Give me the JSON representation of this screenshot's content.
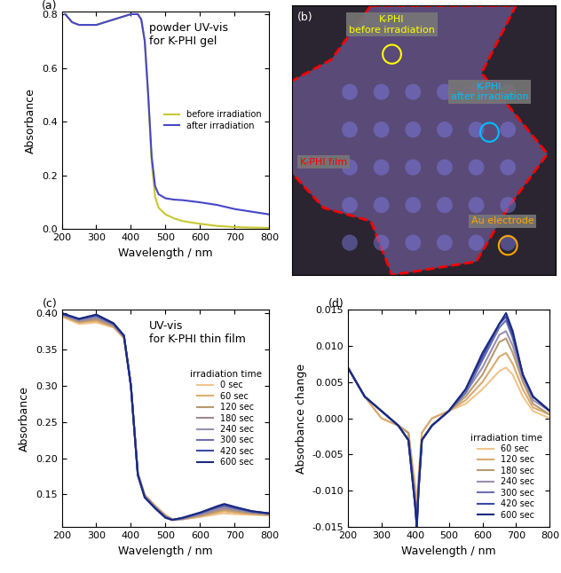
{
  "chart_data": [
    {
      "type": "line",
      "panel": "(a)",
      "annotation": "powder UV-vis\nfor K-PHI gel",
      "x_label": "Wavelength / nm",
      "y_label": "Absorbance",
      "xlim": [
        200,
        800
      ],
      "xticks": [
        200,
        300,
        400,
        500,
        600,
        700,
        800
      ],
      "ylim": [
        0,
        0.81
      ],
      "yticks": [
        {
          "value": 0,
          "label": "0.0"
        },
        0.2,
        0.4,
        0.6,
        0.8
      ],
      "legend": "center right",
      "x": [
        210,
        230,
        250,
        275,
        300,
        325,
        350,
        375,
        400,
        420,
        430,
        440,
        450,
        460,
        470,
        480,
        500,
        525,
        550,
        600,
        650,
        700,
        750,
        800
      ],
      "series": [
        {
          "name": "before irradiation",
          "color": "#c8c832",
          "values": [
            0.8,
            0.77,
            0.76,
            0.76,
            0.76,
            0.77,
            0.78,
            0.79,
            0.8,
            0.8,
            0.78,
            0.7,
            0.5,
            0.25,
            0.12,
            0.08,
            0.055,
            0.04,
            0.03,
            0.02,
            0.012,
            0.008,
            0.006,
            0.005
          ]
        },
        {
          "name": "after irradiation",
          "color": "#4646c8",
          "values": [
            0.8,
            0.77,
            0.76,
            0.76,
            0.76,
            0.77,
            0.78,
            0.79,
            0.8,
            0.8,
            0.78,
            0.7,
            0.5,
            0.27,
            0.16,
            0.13,
            0.115,
            0.11,
            0.108,
            0.1,
            0.09,
            0.075,
            0.065,
            0.055
          ]
        }
      ]
    },
    {
      "type": "image",
      "panel": "(b)",
      "tick_labels": false,
      "annotations": [
        "K-PHI\nbefore irradiation",
        "K-PHI\nafter irradiation",
        "K-PHI film",
        "Au electrode"
      ]
    },
    {
      "type": "line",
      "panel": "(c)",
      "annotation": "UV-vis\nfor K-PHI thin film",
      "x_label": "Wavelength / nm",
      "y_label": "Absorbance",
      "xlim": [
        200,
        800
      ],
      "xticks": [
        200,
        300,
        400,
        500,
        600,
        700,
        800
      ],
      "ylim": [
        0.105,
        0.405
      ],
      "yticks": [
        0.15,
        {
          "value": 0.2,
          "label": "0.20"
        },
        0.25,
        {
          "value": 0.3,
          "label": "0.30"
        },
        0.35,
        {
          "value": 0.4,
          "label": "0.40"
        }
      ],
      "legend": "center right",
      "legend_title": "irradiation time",
      "x": [
        200,
        250,
        300,
        350,
        380,
        400,
        420,
        440,
        470,
        500,
        520,
        550,
        600,
        650,
        670,
        700,
        750,
        800
      ],
      "series": [
        {
          "name": "0 sec",
          "color": "#f2c48a",
          "values": [
            0.395,
            0.385,
            0.387,
            0.38,
            0.365,
            0.3,
            0.18,
            0.15,
            0.135,
            0.122,
            0.116,
            0.116,
            0.119,
            0.123,
            0.124,
            0.123,
            0.122,
            0.121
          ]
        },
        {
          "name": "60 sec",
          "color": "#e0ae6e",
          "values": [
            0.396,
            0.387,
            0.389,
            0.381,
            0.366,
            0.3,
            0.179,
            0.149,
            0.134,
            0.121,
            0.116,
            0.116,
            0.12,
            0.125,
            0.127,
            0.125,
            0.123,
            0.122
          ]
        },
        {
          "name": "120 sec",
          "color": "#b89a70",
          "values": [
            0.397,
            0.388,
            0.391,
            0.382,
            0.367,
            0.3,
            0.179,
            0.148,
            0.133,
            0.12,
            0.115,
            0.116,
            0.121,
            0.127,
            0.129,
            0.127,
            0.124,
            0.122
          ]
        },
        {
          "name": "180 sec",
          "color": "#a08890",
          "values": [
            0.398,
            0.389,
            0.393,
            0.383,
            0.367,
            0.3,
            0.178,
            0.148,
            0.133,
            0.12,
            0.115,
            0.117,
            0.122,
            0.129,
            0.131,
            0.129,
            0.125,
            0.123
          ]
        },
        {
          "name": "240 sec",
          "color": "#9a90b0",
          "values": [
            0.398,
            0.39,
            0.395,
            0.384,
            0.368,
            0.3,
            0.178,
            0.147,
            0.132,
            0.119,
            0.115,
            0.117,
            0.123,
            0.131,
            0.133,
            0.13,
            0.126,
            0.123
          ]
        },
        {
          "name": "300 sec",
          "color": "#6a70b0",
          "values": [
            0.399,
            0.391,
            0.396,
            0.385,
            0.368,
            0.3,
            0.177,
            0.147,
            0.132,
            0.119,
            0.115,
            0.117,
            0.124,
            0.132,
            0.134,
            0.131,
            0.126,
            0.124
          ]
        },
        {
          "name": "420 sec",
          "color": "#3a4aa8",
          "values": [
            0.399,
            0.392,
            0.397,
            0.385,
            0.369,
            0.3,
            0.177,
            0.146,
            0.131,
            0.118,
            0.115,
            0.118,
            0.125,
            0.133,
            0.136,
            0.132,
            0.127,
            0.124
          ]
        },
        {
          "name": "600 sec",
          "color": "#1a2a80",
          "values": [
            0.4,
            0.392,
            0.398,
            0.386,
            0.369,
            0.3,
            0.177,
            0.146,
            0.131,
            0.118,
            0.115,
            0.118,
            0.125,
            0.134,
            0.137,
            0.133,
            0.127,
            0.124
          ]
        }
      ]
    },
    {
      "type": "line",
      "panel": "(d)",
      "x_label": "Wavelength / nm",
      "y_label": "Absorbance change",
      "xlim": [
        200,
        800
      ],
      "xticks": [
        200,
        300,
        400,
        500,
        600,
        700,
        800
      ],
      "ylim": [
        -0.015,
        0.015
      ],
      "yticks": [
        -0.015,
        {
          "value": -0.01,
          "label": "-0.010"
        },
        -0.005,
        {
          "value": 0,
          "label": "0.000"
        },
        0.005,
        {
          "value": 0.01,
          "label": "0.010"
        },
        0.015
      ],
      "legend": "lower right",
      "legend_title": "irradiation time",
      "x": [
        200,
        250,
        300,
        350,
        380,
        400,
        405,
        410,
        420,
        450,
        500,
        550,
        600,
        650,
        670,
        690,
        720,
        750,
        800
      ],
      "series": [
        {
          "name": "60 sec",
          "color": "#f2c48a",
          "values": [
            0.007,
            0.003,
            0.0,
            -0.001,
            -0.002,
            -0.009,
            -0.012,
            -0.008,
            -0.002,
            0.0,
            0.001,
            0.002,
            0.004,
            0.0065,
            0.007,
            0.006,
            0.003,
            0.001,
            0.0
          ]
        },
        {
          "name": "120 sec",
          "color": "#d8aa70",
          "values": [
            0.007,
            0.003,
            0.0,
            -0.001,
            -0.002,
            -0.01,
            -0.013,
            -0.009,
            -0.002,
            0.0,
            0.001,
            0.0025,
            0.005,
            0.0085,
            0.009,
            0.0075,
            0.004,
            0.0015,
            0.0005
          ]
        },
        {
          "name": "180 sec",
          "color": "#b89a70",
          "values": [
            0.007,
            0.003,
            0.001,
            -0.001,
            -0.002,
            -0.011,
            -0.014,
            -0.009,
            -0.003,
            -0.001,
            0.001,
            0.003,
            0.006,
            0.0105,
            0.011,
            0.009,
            0.005,
            0.002,
            0.0005
          ]
        },
        {
          "name": "240 sec",
          "color": "#9a90b0",
          "values": [
            0.007,
            0.003,
            0.001,
            -0.001,
            -0.003,
            -0.011,
            -0.014,
            -0.01,
            -0.003,
            -0.001,
            0.001,
            0.0035,
            0.007,
            0.0115,
            0.012,
            0.01,
            0.0055,
            0.0025,
            0.001
          ]
        },
        {
          "name": "300 sec",
          "color": "#6a70b0",
          "values": [
            0.007,
            0.003,
            0.001,
            -0.001,
            -0.003,
            -0.012,
            -0.015,
            -0.01,
            -0.003,
            -0.001,
            0.001,
            0.0035,
            0.008,
            0.0125,
            0.0135,
            0.011,
            0.006,
            0.003,
            0.001
          ]
        },
        {
          "name": "420 sec",
          "color": "#3a4aa8",
          "values": [
            0.007,
            0.003,
            0.001,
            -0.001,
            -0.003,
            -0.012,
            -0.015,
            -0.01,
            -0.003,
            -0.001,
            0.001,
            0.004,
            0.0085,
            0.013,
            0.014,
            0.0115,
            0.006,
            0.003,
            0.001
          ]
        },
        {
          "name": "600 sec",
          "color": "#1a2a80",
          "values": [
            0.007,
            0.003,
            0.001,
            -0.001,
            -0.003,
            -0.012,
            -0.015,
            -0.01,
            -0.003,
            -0.001,
            0.001,
            0.004,
            0.009,
            0.013,
            0.0145,
            0.012,
            0.006,
            0.003,
            0.001
          ]
        }
      ]
    }
  ]
}
